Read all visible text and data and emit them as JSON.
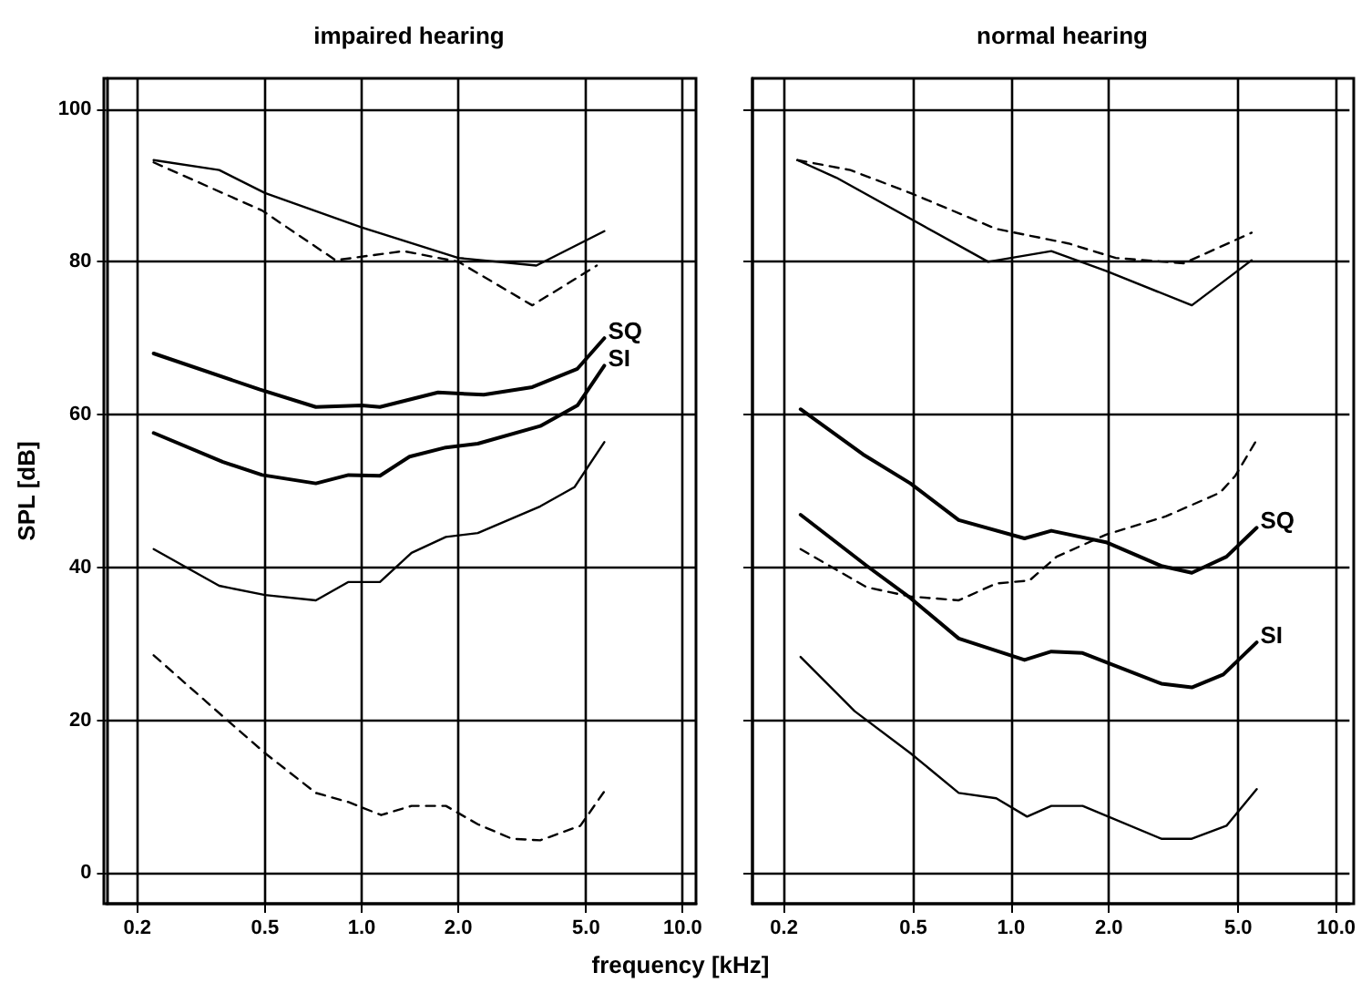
{
  "chart_data": [
    {
      "type": "line",
      "title": "impaired hearing",
      "xlabel": "frequency [kHz]",
      "ylabel": "SPL [dB]",
      "log": "x",
      "grid": true,
      "legend": false,
      "marker": "none",
      "xlim": [
        0.16,
        11
      ],
      "xticks": [
        {
          "value": 0.2,
          "label": "0.2"
        },
        {
          "value": 0.5,
          "label": "0.5"
        },
        {
          "value": 1,
          "label": "1.0"
        },
        {
          "value": 2,
          "label": "2.0"
        },
        {
          "value": 5,
          "label": "5.0"
        },
        {
          "value": 10,
          "label": "10.0"
        }
      ],
      "ylim": [
        -4,
        104
      ],
      "yticks": [
        0,
        20,
        40,
        60,
        80,
        100
      ],
      "series": [
        {
          "color": "#000000",
          "line_style": "solid",
          "x": [
            0.225,
            0.36,
            0.5,
            1.0,
            2.0,
            3.5,
            5.7
          ],
          "values": [
            93.3,
            92,
            89,
            84.5,
            80.5,
            79.5,
            84
          ]
        },
        {
          "color": "#000000",
          "line_style": "dashed",
          "x": [
            0.225,
            0.49,
            0.83,
            1.35,
            2.0,
            3.4,
            5.4
          ],
          "values": [
            93,
            86.7,
            80.2,
            81.4,
            80,
            74.3,
            79.5
          ]
        },
        {
          "name": "SQ",
          "color": "#000000",
          "line_style": "solid",
          "x": [
            0.225,
            0.48,
            0.72,
            1.0,
            1.14,
            1.73,
            2.4,
            3.4,
            4.7,
            5.7
          ],
          "values": [
            68,
            63.3,
            61,
            61.2,
            61,
            62.9,
            62.6,
            63.6,
            66,
            70
          ]
        },
        {
          "name": "SI",
          "color": "#000000",
          "line_style": "solid",
          "x": [
            0.225,
            0.37,
            0.49,
            0.72,
            0.91,
            1.14,
            1.41,
            1.83,
            2.3,
            3.6,
            4.7,
            5.7
          ],
          "values": [
            57.6,
            53.8,
            52.1,
            51,
            52.1,
            52,
            54.5,
            55.7,
            56.2,
            58.5,
            61.2,
            66.4
          ]
        },
        {
          "color": "#000000",
          "line_style": "solid",
          "x": [
            0.225,
            0.36,
            0.5,
            0.72,
            0.91,
            1.14,
            1.43,
            1.83,
            2.3,
            3.6,
            4.6,
            5.7
          ],
          "values": [
            42.4,
            37.6,
            36.4,
            35.7,
            38.1,
            38.1,
            41.9,
            44,
            44.5,
            48,
            50.5,
            56.4
          ]
        },
        {
          "color": "#000000",
          "line_style": "dashed",
          "x": [
            0.225,
            0.37,
            0.5,
            0.72,
            0.91,
            1.15,
            1.43,
            1.83,
            2.3,
            2.94,
            3.6,
            4.8,
            5.7
          ],
          "values": [
            28.5,
            20.5,
            15.7,
            10.5,
            9.3,
            7.6,
            8.8,
            8.8,
            6.4,
            4.5,
            4.3,
            6.2,
            10.7
          ]
        }
      ]
    },
    {
      "type": "line",
      "title": "normal hearing",
      "log": "x",
      "grid": true,
      "legend": false,
      "marker": "none",
      "tick_labels": "x",
      "xlim": [
        0.16,
        11
      ],
      "xticks": [
        {
          "value": 0.2,
          "label": "0.2"
        },
        {
          "value": 0.5,
          "label": "0.5"
        },
        {
          "value": 1,
          "label": "1.0"
        },
        {
          "value": 2,
          "label": "2.0"
        },
        {
          "value": 5,
          "label": "5.0"
        },
        {
          "value": 10,
          "label": "10.0"
        }
      ],
      "ylim": [
        -4,
        104
      ],
      "yticks": [
        0,
        20,
        40,
        60,
        80,
        100
      ],
      "series": [
        {
          "color": "#000000",
          "line_style": "solid",
          "x": [
            0.22,
            0.29,
            0.85,
            1.33,
            1.96,
            3.6,
            5.5
          ],
          "values": [
            93.3,
            91,
            80,
            81.4,
            78.8,
            74.3,
            80.2
          ]
        },
        {
          "color": "#000000",
          "line_style": "dashed",
          "x": [
            0.22,
            0.32,
            0.49,
            0.9,
            1.5,
            2.1,
            3.4,
            5.5
          ],
          "values": [
            93.3,
            92,
            89,
            84.3,
            82.4,
            80.5,
            79.8,
            83.8
          ]
        },
        {
          "color": "#000000",
          "line_style": "dashed",
          "x": [
            0.225,
            0.36,
            0.49,
            0.69,
            0.9,
            1.14,
            1.38,
            1.96,
            3.0,
            4.4,
            4.9,
            5.7
          ],
          "values": [
            42.4,
            37.4,
            36.2,
            35.7,
            37.9,
            38.3,
            41.4,
            44.3,
            46.7,
            49.8,
            52,
            56.7
          ]
        },
        {
          "name": "SQ",
          "color": "#000000",
          "line_style": "solid",
          "x": [
            0.225,
            0.35,
            0.49,
            0.69,
            1.1,
            1.33,
            1.96,
            2.9,
            3.6,
            4.6,
            5.7
          ],
          "values": [
            60.7,
            54.8,
            51,
            46.2,
            43.8,
            44.8,
            43.3,
            40.2,
            39.3,
            41.4,
            45.2
          ]
        },
        {
          "name": "SI",
          "color": "#000000",
          "line_style": "solid",
          "x": [
            0.225,
            0.36,
            0.49,
            0.69,
            1.1,
            1.33,
            1.66,
            2.9,
            3.6,
            4.5,
            5.7
          ],
          "values": [
            46.9,
            40.2,
            36,
            30.7,
            27.9,
            29,
            28.8,
            24.8,
            24.3,
            26,
            30.2
          ]
        },
        {
          "color": "#000000",
          "line_style": "solid",
          "x": [
            0.225,
            0.33,
            0.49,
            0.69,
            0.9,
            1.12,
            1.33,
            1.66,
            2.9,
            3.6,
            4.6,
            5.7
          ],
          "values": [
            28.3,
            21.2,
            15.7,
            10.5,
            9.8,
            7.4,
            8.8,
            8.8,
            4.5,
            4.5,
            6.2,
            11
          ]
        }
      ]
    }
  ]
}
